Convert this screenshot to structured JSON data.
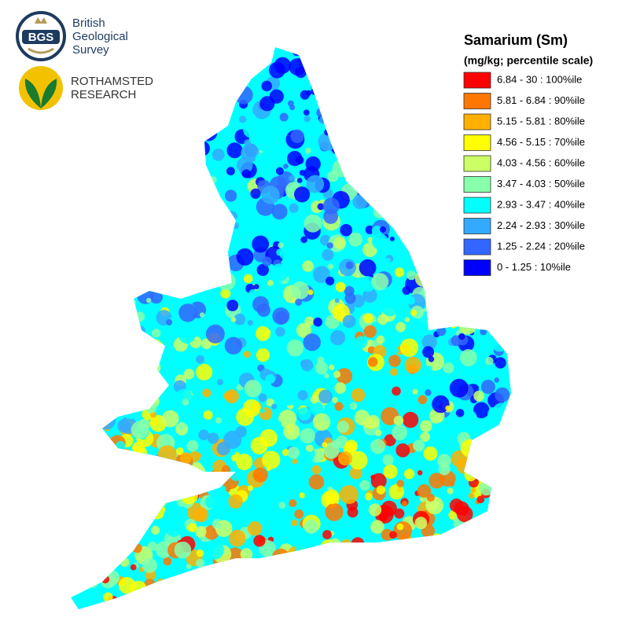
{
  "logos": {
    "bgs": {
      "abbr": "BGS",
      "lines": [
        "British",
        "Geological",
        "Survey"
      ]
    },
    "rothamsted": {
      "lines": [
        "ROTHAMSTED",
        "RESEARCH"
      ]
    }
  },
  "legend": {
    "title": "Samarium (Sm)",
    "subtitle": "(mg/kg; percentile scale)",
    "items": [
      {
        "label": "6.84 - 30 : 100%ile",
        "color": "#ff0000"
      },
      {
        "label": "5.81 - 6.84 : 90%ile",
        "color": "#ff7700"
      },
      {
        "label": "5.15 - 5.81 : 80%ile",
        "color": "#ffb000"
      },
      {
        "label": "4.56 - 5.15 : 70%ile",
        "color": "#ffff00"
      },
      {
        "label": "4.03 - 4.56 : 60%ile",
        "color": "#ccff66"
      },
      {
        "label": "3.47 - 4.03 : 50%ile",
        "color": "#88ffaa"
      },
      {
        "label": "2.93 - 3.47 : 40%ile",
        "color": "#00ffff"
      },
      {
        "label": "2.24 - 2.93 : 30%ile",
        "color": "#33aaff"
      },
      {
        "label": "1.25 - 2.24 : 20%ile",
        "color": "#3366ff"
      },
      {
        "label": "0 - 1.25 : 10%ile",
        "color": "#0000ff"
      }
    ]
  }
}
